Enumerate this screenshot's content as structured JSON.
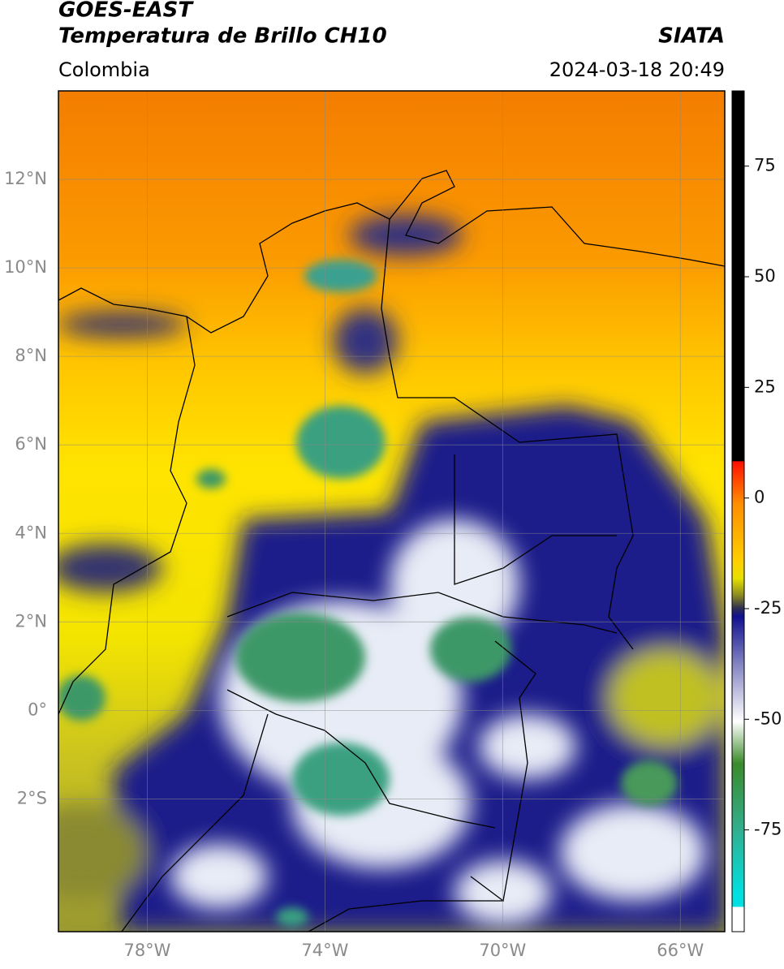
{
  "header": {
    "title": "GOES-EAST",
    "subtitle": "Temperatura de Brillo CH10",
    "source": "SIATA",
    "region": "Colombia",
    "datetime": "2024-03-18 20:49"
  },
  "map": {
    "latlim": [
      -5,
      14
    ],
    "lonlim": [
      -80,
      -65
    ],
    "lat_ticks": [
      {
        "value": 12,
        "label": "12°N"
      },
      {
        "value": 10,
        "label": "10°N"
      },
      {
        "value": 8,
        "label": "8°N"
      },
      {
        "value": 6,
        "label": "6°N"
      },
      {
        "value": 4,
        "label": "4°N"
      },
      {
        "value": 2,
        "label": "2°N"
      },
      {
        "value": 0,
        "label": "0°"
      },
      {
        "value": -2,
        "label": "2°S"
      }
    ],
    "lon_ticks": [
      {
        "value": -78,
        "label": "78°W"
      },
      {
        "value": -74,
        "label": "74°W"
      },
      {
        "value": -70,
        "label": "70°W"
      },
      {
        "value": -66,
        "label": "66°W"
      }
    ]
  },
  "colorbar": {
    "lim": [
      -98,
      92
    ],
    "ticks": [
      75,
      50,
      25,
      0,
      -25,
      -50,
      -75
    ]
  }
}
